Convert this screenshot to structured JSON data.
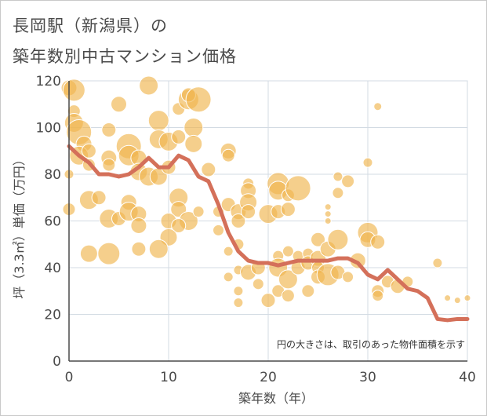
{
  "title_line1": "長岡駅（新潟県）の",
  "title_line2": "築年数別中古マンション価格",
  "chart_data": {
    "type": "scatter",
    "xlabel": "築年数（年）",
    "ylabel": "坪（3.3㎡）単価（万円）",
    "xlim": [
      0,
      40
    ],
    "ylim": [
      0,
      120
    ],
    "xticks": [
      0,
      10,
      20,
      30,
      40
    ],
    "yticks": [
      0,
      20,
      40,
      60,
      80,
      100,
      120
    ],
    "grid": true,
    "annotation": "円の大きさは、取引のあった物件面積を示す",
    "colors": {
      "bubble": "#f0b64e",
      "line": "#d4705a",
      "grid": "#d3dbe3",
      "axis": "#4a4a4a"
    },
    "trend_line": {
      "x": [
        0,
        1,
        2,
        3,
        4,
        5,
        6,
        7,
        8,
        9,
        10,
        11,
        12,
        13,
        14,
        15,
        16,
        17,
        18,
        19,
        20,
        21,
        22,
        23,
        24,
        25,
        26,
        27,
        28,
        29,
        30,
        31,
        32,
        33,
        34,
        35,
        36,
        37,
        38,
        39,
        40
      ],
      "y": [
        92,
        88,
        85,
        80,
        80,
        79,
        80,
        83,
        87,
        83,
        83,
        88,
        86,
        79,
        77,
        67,
        55,
        47,
        43,
        42,
        42,
        41,
        42,
        43,
        43,
        43,
        43,
        44,
        44,
        42,
        37,
        35,
        39,
        35,
        31,
        30,
        27,
        18,
        17.5,
        18,
        18
      ]
    },
    "bubbles": [
      {
        "x": 0,
        "y": 117,
        "s": 10
      },
      {
        "x": 0.5,
        "y": 116,
        "s": 14
      },
      {
        "x": 0.5,
        "y": 107,
        "s": 8
      },
      {
        "x": 0.5,
        "y": 102,
        "s": 12
      },
      {
        "x": 1,
        "y": 98,
        "s": 16
      },
      {
        "x": 1.5,
        "y": 93,
        "s": 10
      },
      {
        "x": 1,
        "y": 88,
        "s": 12
      },
      {
        "x": 2,
        "y": 90,
        "s": 9
      },
      {
        "x": 2,
        "y": 84,
        "s": 8
      },
      {
        "x": 0,
        "y": 80,
        "s": 6
      },
      {
        "x": 0,
        "y": 65,
        "s": 8
      },
      {
        "x": 2,
        "y": 69,
        "s": 12
      },
      {
        "x": 3,
        "y": 70,
        "s": 9
      },
      {
        "x": 2,
        "y": 46,
        "s": 11
      },
      {
        "x": 4,
        "y": 99,
        "s": 9
      },
      {
        "x": 5,
        "y": 110,
        "s": 10
      },
      {
        "x": 4,
        "y": 87,
        "s": 10
      },
      {
        "x": 4,
        "y": 84,
        "s": 8
      },
      {
        "x": 6,
        "y": 92,
        "s": 16
      },
      {
        "x": 6,
        "y": 88,
        "s": 13
      },
      {
        "x": 7,
        "y": 87,
        "s": 10
      },
      {
        "x": 7,
        "y": 81,
        "s": 11
      },
      {
        "x": 8,
        "y": 79,
        "s": 12
      },
      {
        "x": 8,
        "y": 118,
        "s": 12
      },
      {
        "x": 4,
        "y": 61,
        "s": 12
      },
      {
        "x": 5,
        "y": 61,
        "s": 9
      },
      {
        "x": 6,
        "y": 68,
        "s": 10
      },
      {
        "x": 6,
        "y": 64,
        "s": 12
      },
      {
        "x": 7,
        "y": 63,
        "s": 10
      },
      {
        "x": 7,
        "y": 58,
        "s": 10
      },
      {
        "x": 4,
        "y": 46,
        "s": 14
      },
      {
        "x": 7,
        "y": 48,
        "s": 9
      },
      {
        "x": 9,
        "y": 103,
        "s": 13
      },
      {
        "x": 9,
        "y": 95,
        "s": 12
      },
      {
        "x": 10,
        "y": 94,
        "s": 12
      },
      {
        "x": 9,
        "y": 79,
        "s": 11
      },
      {
        "x": 10,
        "y": 83,
        "s": 9
      },
      {
        "x": 11,
        "y": 108,
        "s": 8
      },
      {
        "x": 12,
        "y": 112,
        "s": 13
      },
      {
        "x": 12,
        "y": 114,
        "s": 9
      },
      {
        "x": 13,
        "y": 112,
        "s": 16
      },
      {
        "x": 12.5,
        "y": 100,
        "s": 12
      },
      {
        "x": 12.5,
        "y": 93,
        "s": 11
      },
      {
        "x": 11,
        "y": 96,
        "s": 9
      },
      {
        "x": 11,
        "y": 70,
        "s": 12
      },
      {
        "x": 11,
        "y": 65,
        "s": 10
      },
      {
        "x": 10,
        "y": 60,
        "s": 10
      },
      {
        "x": 12,
        "y": 60,
        "s": 12
      },
      {
        "x": 11,
        "y": 58,
        "s": 9
      },
      {
        "x": 10,
        "y": 53,
        "s": 11
      },
      {
        "x": 9,
        "y": 48,
        "s": 12
      },
      {
        "x": 13,
        "y": 64,
        "s": 7
      },
      {
        "x": 14,
        "y": 82,
        "s": 9
      },
      {
        "x": 15,
        "y": 64,
        "s": 7
      },
      {
        "x": 15,
        "y": 56,
        "s": 7
      },
      {
        "x": 16,
        "y": 90,
        "s": 10
      },
      {
        "x": 16,
        "y": 88,
        "s": 8
      },
      {
        "x": 16,
        "y": 67,
        "s": 9
      },
      {
        "x": 17,
        "y": 64,
        "s": 10
      },
      {
        "x": 17,
        "y": 60,
        "s": 9
      },
      {
        "x": 17,
        "y": 50,
        "s": 7
      },
      {
        "x": 16,
        "y": 47,
        "s": 6
      },
      {
        "x": 18,
        "y": 76,
        "s": 7
      },
      {
        "x": 18,
        "y": 73,
        "s": 10
      },
      {
        "x": 18,
        "y": 68,
        "s": 11
      },
      {
        "x": 18,
        "y": 64,
        "s": 9
      },
      {
        "x": 16,
        "y": 36,
        "s": 6
      },
      {
        "x": 17,
        "y": 39,
        "s": 6
      },
      {
        "x": 17,
        "y": 30,
        "s": 6
      },
      {
        "x": 17,
        "y": 25,
        "s": 6
      },
      {
        "x": 18,
        "y": 38,
        "s": 10
      },
      {
        "x": 19,
        "y": 40,
        "s": 9
      },
      {
        "x": 19,
        "y": 33,
        "s": 7
      },
      {
        "x": 20,
        "y": 63,
        "s": 12
      },
      {
        "x": 20,
        "y": 26,
        "s": 9
      },
      {
        "x": 21,
        "y": 76,
        "s": 14
      },
      {
        "x": 21,
        "y": 73,
        "s": 12
      },
      {
        "x": 21,
        "y": 64,
        "s": 9
      },
      {
        "x": 21,
        "y": 45,
        "s": 7
      },
      {
        "x": 21,
        "y": 40,
        "s": 12
      },
      {
        "x": 21,
        "y": 30,
        "s": 8
      },
      {
        "x": 22,
        "y": 71,
        "s": 8
      },
      {
        "x": 22,
        "y": 65,
        "s": 9
      },
      {
        "x": 22,
        "y": 47,
        "s": 7
      },
      {
        "x": 22,
        "y": 35,
        "s": 12
      },
      {
        "x": 22,
        "y": 28,
        "s": 8
      },
      {
        "x": 23,
        "y": 74,
        "s": 16
      },
      {
        "x": 23,
        "y": 45,
        "s": 7
      },
      {
        "x": 23,
        "y": 40,
        "s": 9
      },
      {
        "x": 24,
        "y": 46,
        "s": 7
      },
      {
        "x": 24,
        "y": 42,
        "s": 9
      },
      {
        "x": 24,
        "y": 30,
        "s": 8
      },
      {
        "x": 25,
        "y": 52,
        "s": 9
      },
      {
        "x": 25,
        "y": 44,
        "s": 10
      },
      {
        "x": 25,
        "y": 40,
        "s": 8
      },
      {
        "x": 25,
        "y": 36,
        "s": 9
      },
      {
        "x": 26,
        "y": 48,
        "s": 10
      },
      {
        "x": 26,
        "y": 37,
        "s": 14
      },
      {
        "x": 26,
        "y": 66,
        "s": 4
      },
      {
        "x": 26,
        "y": 63,
        "s": 4
      },
      {
        "x": 26,
        "y": 60,
        "s": 4
      },
      {
        "x": 27,
        "y": 79,
        "s": 6
      },
      {
        "x": 27,
        "y": 72,
        "s": 7
      },
      {
        "x": 27,
        "y": 52,
        "s": 13
      },
      {
        "x": 27,
        "y": 38,
        "s": 9
      },
      {
        "x": 28,
        "y": 77,
        "s": 8
      },
      {
        "x": 28,
        "y": 36,
        "s": 7
      },
      {
        "x": 29,
        "y": 43,
        "s": 10
      },
      {
        "x": 30,
        "y": 85,
        "s": 6
      },
      {
        "x": 30,
        "y": 55,
        "s": 13
      },
      {
        "x": 30,
        "y": 52,
        "s": 10
      },
      {
        "x": 31,
        "y": 109,
        "s": 5
      },
      {
        "x": 31,
        "y": 51,
        "s": 9
      },
      {
        "x": 31,
        "y": 30,
        "s": 8
      },
      {
        "x": 31,
        "y": 28,
        "s": 7
      },
      {
        "x": 32,
        "y": 34,
        "s": 8
      },
      {
        "x": 33,
        "y": 32,
        "s": 9
      },
      {
        "x": 34,
        "y": 34,
        "s": 7
      },
      {
        "x": 37,
        "y": 42,
        "s": 6
      },
      {
        "x": 38,
        "y": 27,
        "s": 4
      },
      {
        "x": 39,
        "y": 26,
        "s": 4
      },
      {
        "x": 40,
        "y": 27,
        "s": 4
      }
    ]
  }
}
